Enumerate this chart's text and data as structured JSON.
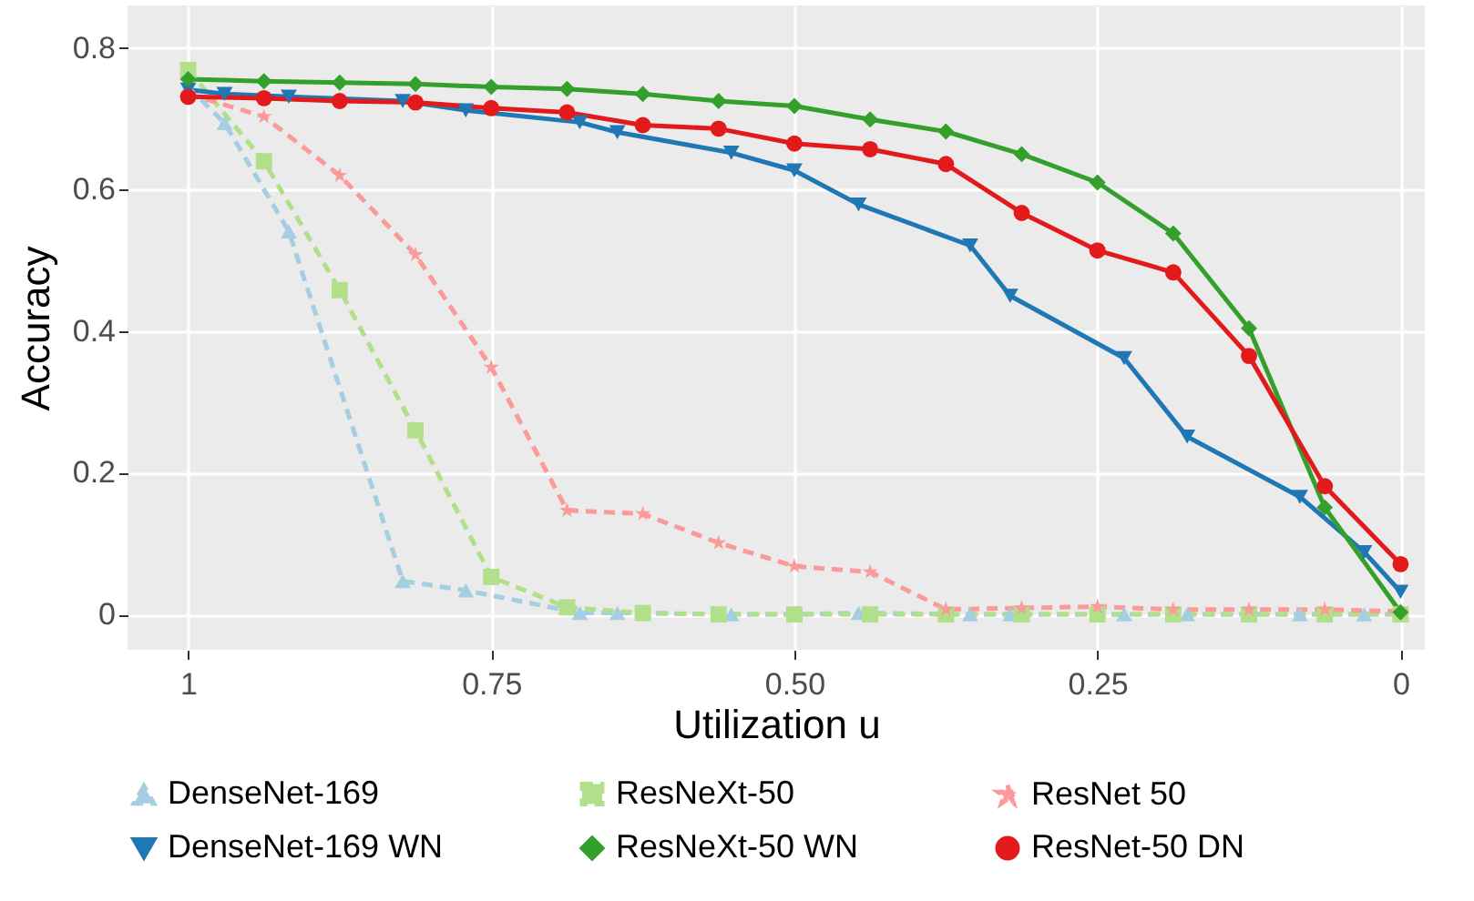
{
  "chart_data": {
    "type": "line",
    "xlabel": "Utilization u",
    "ylabel": "Accuracy",
    "xlim": [
      1.05,
      -0.02
    ],
    "ylim": [
      -0.05,
      0.86
    ],
    "xticks": [
      1,
      0.75,
      {
        "value": 0.5,
        "label": "0.50"
      },
      0.25,
      0
    ],
    "yticks": [
      0,
      0.2,
      0.4,
      0.6,
      0.8
    ],
    "grid": true,
    "legend": "bottom",
    "series": [
      {
        "name": "DenseNet-169",
        "color": "#a6cee3",
        "marker": "triangle",
        "line_style": "dashed",
        "x": [
          1,
          0.97,
          0.917,
          0.823,
          0.771,
          0.677,
          0.646,
          0.552,
          0.5,
          0.447,
          0.355,
          0.322,
          0.228,
          0.176,
          0.083,
          0.03,
          0
        ],
        "values": [
          0.745,
          0.694,
          0.541,
          0.047,
          0.034,
          0.002,
          0.002,
          0,
          0,
          0.002,
          0,
          0,
          0,
          0,
          0,
          0,
          0
        ]
      },
      {
        "name": "ResNeXt-50",
        "color": "#b2df8a",
        "marker": "square",
        "line_style": "dashed",
        "x": [
          1,
          0.9375,
          0.875,
          0.8125,
          0.75,
          0.6875,
          0.625,
          0.5625,
          0.5,
          0.4375,
          0.375,
          0.3125,
          0.25,
          0.1875,
          0.125,
          0.0625,
          0
        ],
        "values": [
          0.769,
          0.64,
          0.458,
          0.26,
          0.053,
          0.01,
          0.002,
          0,
          0,
          0,
          0,
          0,
          0,
          0,
          0,
          0,
          0
        ]
      },
      {
        "name": "ResNet 50",
        "color": "#fb9a99",
        "marker": "star",
        "line_style": "dashed",
        "x": [
          1,
          0.9375,
          0.875,
          0.8125,
          0.75,
          0.6875,
          0.625,
          0.5625,
          0.5,
          0.4375,
          0.375,
          0.3125,
          0.25,
          0.1875,
          0.125,
          0.0625,
          0
        ],
        "values": [
          0.735,
          0.703,
          0.62,
          0.508,
          0.349,
          0.147,
          0.142,
          0.101,
          0.068,
          0.06,
          0.007,
          0.009,
          0.011,
          0.007,
          0.007,
          0.007,
          0.004
        ]
      },
      {
        "name": "DenseNet-169 WN",
        "color": "#1f78b4",
        "marker": "triangle-down",
        "line_style": "solid",
        "x": [
          1,
          0.97,
          0.917,
          0.823,
          0.771,
          0.677,
          0.646,
          0.552,
          0.5,
          0.447,
          0.355,
          0.322,
          0.228,
          0.176,
          0.083,
          0.03,
          0
        ],
        "values": [
          0.741,
          0.735,
          0.731,
          0.725,
          0.712,
          0.695,
          0.681,
          0.652,
          0.627,
          0.579,
          0.521,
          0.45,
          0.362,
          0.251,
          0.166,
          0.088,
          0.032
        ]
      },
      {
        "name": "ResNeXt-50 WN",
        "color": "#33a02c",
        "marker": "diamond",
        "line_style": "solid",
        "x": [
          1,
          0.9375,
          0.875,
          0.8125,
          0.75,
          0.6875,
          0.625,
          0.5625,
          0.5,
          0.4375,
          0.375,
          0.3125,
          0.25,
          0.1875,
          0.125,
          0.0625,
          0
        ],
        "values": [
          0.756,
          0.753,
          0.751,
          0.749,
          0.745,
          0.742,
          0.735,
          0.725,
          0.718,
          0.699,
          0.682,
          0.65,
          0.61,
          0.538,
          0.404,
          0.151,
          0.003
        ]
      },
      {
        "name": "ResNet-50 DN",
        "color": "#e31a1c",
        "marker": "circle",
        "line_style": "solid",
        "x": [
          1,
          0.9375,
          0.875,
          0.8125,
          0.75,
          0.6875,
          0.625,
          0.5625,
          0.5,
          0.4375,
          0.375,
          0.3125,
          0.25,
          0.1875,
          0.125,
          0.0625,
          0
        ],
        "values": [
          0.731,
          0.729,
          0.725,
          0.723,
          0.715,
          0.709,
          0.691,
          0.686,
          0.665,
          0.657,
          0.636,
          0.567,
          0.514,
          0.483,
          0.365,
          0.181,
          0.071
        ]
      }
    ]
  }
}
